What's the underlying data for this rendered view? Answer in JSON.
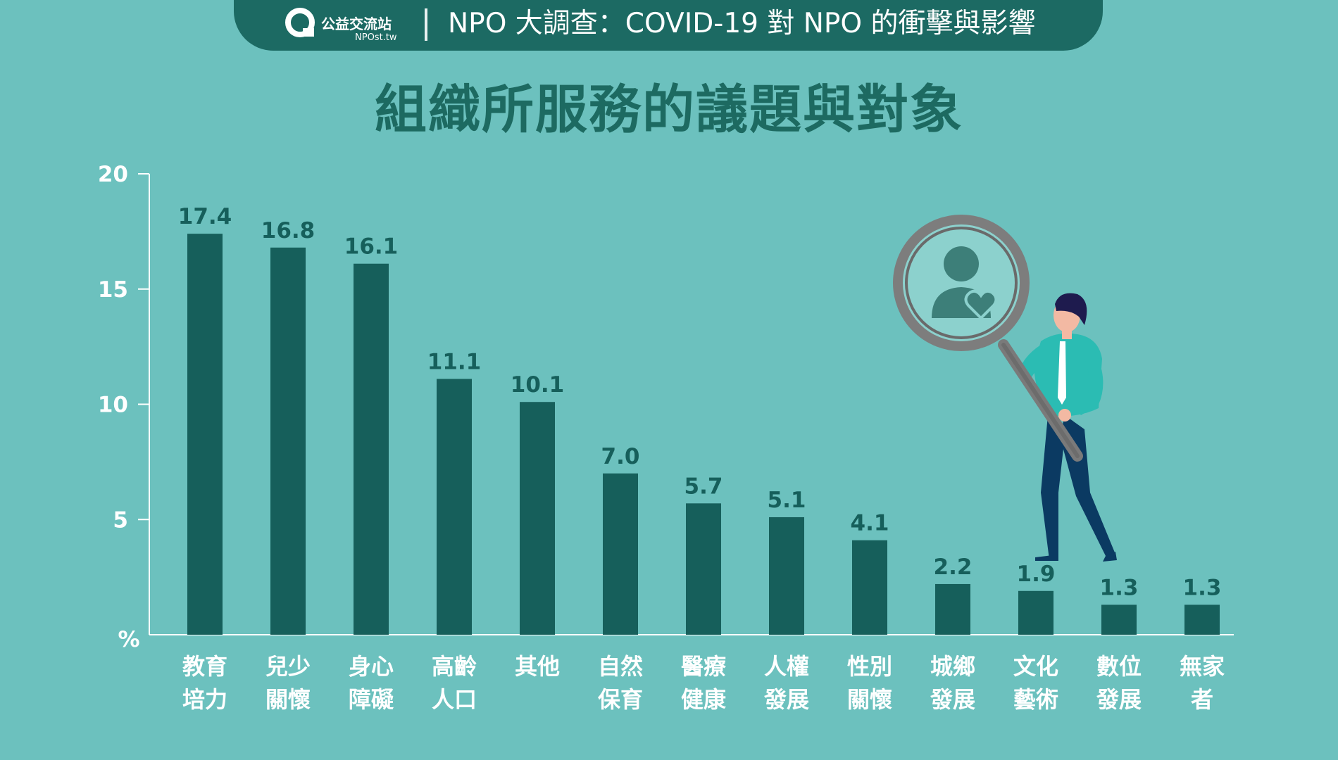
{
  "header": {
    "brand_name": "公益交流站",
    "brand_url": "NPOst.tw",
    "title": "NPO 大調查：COVID-19 對 NPO 的衝擊與影響"
  },
  "colors": {
    "background": "#6cc1be",
    "bar": "#165f5b",
    "header_bg": "#1c6a63",
    "title_text": "#1d6a61",
    "axis": "#ffffff"
  },
  "chart_data": {
    "type": "bar",
    "title": "組織所服務的議題與對象",
    "ylabel": "%",
    "ylim": [
      0,
      20
    ],
    "yticks": [
      5,
      10,
      15,
      20
    ],
    "grid": false,
    "categories": [
      [
        "教育",
        "培力"
      ],
      [
        "兒少",
        "關懷"
      ],
      [
        "身心",
        "障礙"
      ],
      [
        "高齡",
        "人口"
      ],
      [
        "其他"
      ],
      [
        "自然",
        "保育"
      ],
      [
        "醫療",
        "健康"
      ],
      [
        "人權",
        "發展"
      ],
      [
        "性別",
        "關懷"
      ],
      [
        "城鄉",
        "發展"
      ],
      [
        "文化",
        "藝術"
      ],
      [
        "數位",
        "發展"
      ],
      [
        "無家",
        "者"
      ]
    ],
    "values": [
      17.4,
      16.8,
      16.1,
      11.1,
      10.1,
      7.0,
      5.7,
      5.1,
      4.1,
      2.2,
      1.9,
      1.3,
      1.3
    ],
    "value_labels": [
      "17.4",
      "16.8",
      "16.1",
      "11.1",
      "10.1",
      "7.0",
      "5.7",
      "5.1",
      "4.1",
      "2.2",
      "1.9",
      "1.3",
      "1.3"
    ]
  },
  "illustration": {
    "description_icon": "magnifier-with-person-heart-icon"
  }
}
